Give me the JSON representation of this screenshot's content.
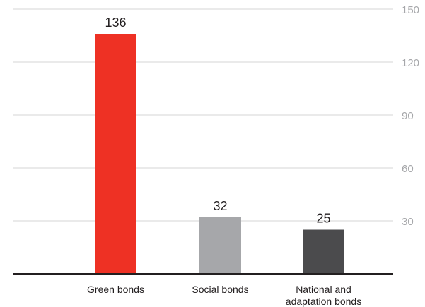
{
  "chart_data": {
    "type": "bar",
    "categories": [
      "Green bonds",
      "Social bonds",
      "National and\nadaptation bonds"
    ],
    "values": [
      136,
      32,
      25
    ],
    "data_labels": [
      "136",
      "32",
      "25"
    ],
    "ylim": [
      0,
      150
    ],
    "yticks": [
      30,
      60,
      90,
      120,
      150
    ],
    "ytick_labels": [
      "30",
      "60",
      "90",
      "120",
      "150"
    ],
    "y_axis_side": "right",
    "grid": true,
    "colors": [
      "#ee3124",
      "#a6a7aa",
      "#4b4b4d"
    ],
    "grid_color": "#d6d6d6",
    "axis_color": "#231f20",
    "tick_label_color": "#a6a7aa",
    "title": "",
    "xlabel": "",
    "ylabel": ""
  }
}
